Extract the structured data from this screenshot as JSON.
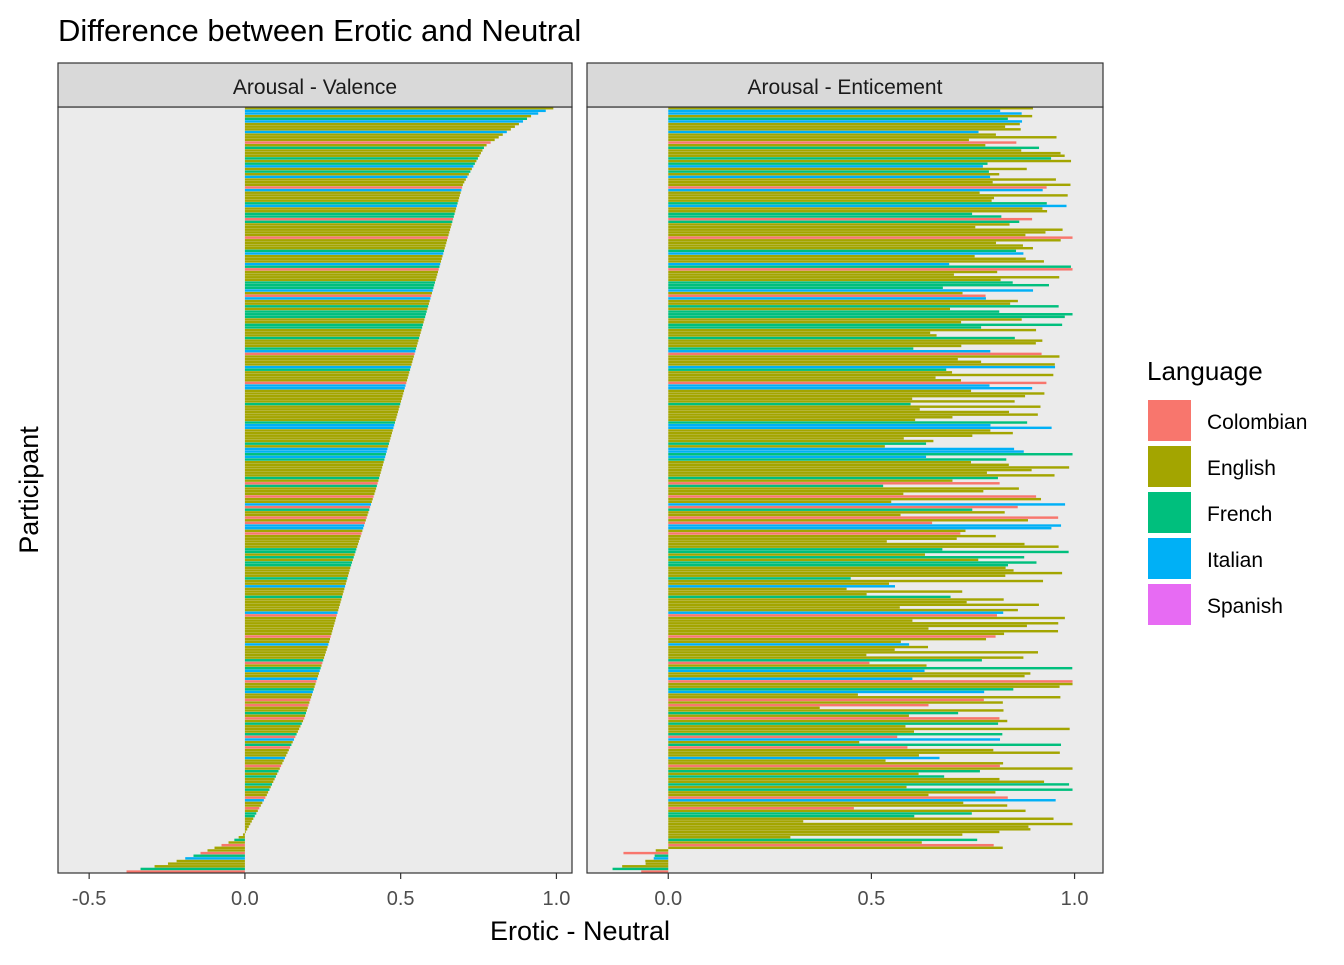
{
  "chart_data": {
    "type": "bar",
    "title": "Difference between Erotic and Neutral",
    "xlabel": "Erotic - Neutral",
    "ylabel": "Participant",
    "orientation": "horizontal",
    "grid": false,
    "legend": {
      "title": "Language",
      "position": "right",
      "entries": [
        {
          "name": "Colombian",
          "color": "#F8766D"
        },
        {
          "name": "English",
          "color": "#A3A500"
        },
        {
          "name": "French",
          "color": "#00BF7D"
        },
        {
          "name": "Italian",
          "color": "#00B0F6"
        },
        {
          "name": "Spanish",
          "color": "#E76BF3"
        }
      ]
    },
    "participant_count": 290,
    "panels": [
      {
        "strip": "Arousal - Valence",
        "xlim": [
          -0.6,
          1.05
        ],
        "ticks": [
          -0.5,
          0.0,
          0.5,
          1.0
        ],
        "tick_labels": [
          "-0.5",
          "0.0",
          "0.5",
          "1.0"
        ],
        "distribution": {
          "sorted": true,
          "y_quantiles": [
            0.0,
            0.01,
            0.02,
            0.04,
            0.05,
            0.1,
            0.2,
            0.3,
            0.4,
            0.5,
            0.6,
            0.7,
            0.8,
            0.9,
            0.95,
            0.99,
            1.0
          ],
          "x_values": [
            -0.38,
            -0.25,
            -0.17,
            -0.04,
            0.0,
            0.07,
            0.19,
            0.27,
            0.34,
            0.42,
            0.49,
            0.56,
            0.63,
            0.7,
            0.77,
            0.92,
            0.99
          ]
        }
      },
      {
        "strip": "Arousal - Enticement",
        "xlim": [
          -0.2,
          1.07
        ],
        "ticks": [
          0.0,
          0.5,
          1.0
        ],
        "tick_labels": [
          "0.0",
          "0.5",
          "1.0"
        ],
        "distribution": {
          "sorted": false,
          "typical_range": [
            0.25,
            1.0
          ],
          "mostly_above": 0.7,
          "min_value": -0.17
        }
      }
    ]
  }
}
